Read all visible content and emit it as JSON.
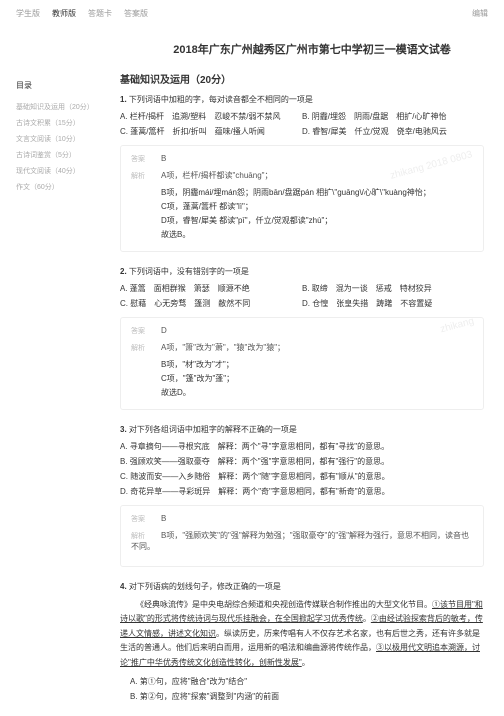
{
  "topbar": {
    "tabs": [
      "学生版",
      "教师版",
      "答题卡",
      "答案版"
    ],
    "active_index": 1,
    "edit": "编辑"
  },
  "title": "2018年广东广州越秀区广州市第七中学初三一模语文试卷",
  "sidebar": {
    "title": "目录",
    "items": [
      "基础知识及运用（20分）",
      "古诗文积累（15分）",
      "文言文阅读（10分）",
      "古诗词鉴赏（5分）",
      "现代文阅读（40分）",
      "作文（60分）"
    ]
  },
  "section1": {
    "title": "基础知识及运用（20分）"
  },
  "q1": {
    "num": "1.",
    "stem": "下列词语中加粗的字，每对读音都全不相同的一项是",
    "opts": {
      "A": "A. 栏杆/揭杆　追溯/塑料　忍峻不禁/弱不禁风",
      "B": "B. 阴霾/埋怨　阴雨/盘踞　相扩/心旷神怡",
      "C": "C. 蓬蒿/篙杆　折扣/折叫　蕴味/搔人听闻",
      "D": "D. 睿智/犀美　仟立/觉观　侥幸/电驰风云"
    },
    "answer": "B",
    "explain": [
      "A项，栏杆/揭杆都读\"chuāng\"；",
      "B项，阴霾mái/埋mán怨；阴雨bān/盘踞pán 相扩\\\"guāng\\/心旷\\\"kuàng神怡；",
      "C项，蓬蒿/篙杆 都读\"lì\"；",
      "D项，睿智/犀美 都读\"pī\"，仟立/觉观都读\"zhù\"；",
      "故选B。"
    ]
  },
  "q2": {
    "num": "2.",
    "stem": "下列词语中，没有错别字的一项是",
    "opts": {
      "A": "A. 蓬篙　面相群猴　箫瑟　顺源不绝",
      "B": "B. 取缔　混为一谈　惩戒　特材狡异",
      "C": "C. 慰藉　心无旁骛　篷测　敝然不同",
      "D": "D. 仓惶　张皇失措　踌躇　不容置疑"
    },
    "answer": "D",
    "explain": [
      "A项，\"箫\"改为\"萧\"，\"猿\"改为\"猿\"；",
      "B项，\"材\"改为\"才\"；",
      "C项，\"篷\"改为\"蓬\"；",
      "故选D。"
    ]
  },
  "q3": {
    "num": "3.",
    "stem": "对下列各组词语中加粗字的解释不正确的一项是",
    "opts": [
      "A. 寻章摘句——寻根究底　解释：两个\"寻\"字意思相同，都有\"寻找\"的意思。",
      "B. 强顾欢笑——强取豪夺　解释：两个\"强\"字意思相同，都有\"强行\"的意思。",
      "C. 随波而安——入乡随俗　解释：两个\"随\"字意思相同，都有\"顺从\"的意思。",
      "D. 奇花异草——寻彩斑异　解释：两个\"奇\"字意思相同，都有\"新奇\"的意思。"
    ],
    "answer": "B",
    "explain": [
      "B项，\"强顾欢笑\"的\"强\"解释为勉强；\"强取豪夺\"的\"强\"解释为强行，意思不相同，读音也不同。"
    ]
  },
  "q4": {
    "num": "4.",
    "stem": "对下列语病的划线句子，修改正确的一项是",
    "paragraph_parts": [
      {
        "text": "《经典咏流传》是中央电胡综合频道和央视创造传媒联合制作推出的大型文化节目。",
        "u": false
      },
      {
        "text": "①该节目用\"和诗以歌\"的形式将传统诗词与现代乐挂融会，在全国掀起学习优秀传统",
        "u": true
      },
      {
        "text": "。",
        "u": false
      },
      {
        "text": "②由经试验探索背后的敏考，传递人文情感，讲述文化知识",
        "u": true
      },
      {
        "text": "。纵读历史，历来传唱有人不仅存艺术名家，也有后世之秀，还有许多就是生活的普通人。他们后来明白而用，运用新的唱法和编曲源将传统作品，",
        "u": false
      },
      {
        "text": "③以极用代文明追本溯源，讨论\"推广中华优秀传统文化创造性转化，创新性发展\"",
        "u": true
      },
      {
        "text": "。",
        "u": false
      }
    ],
    "subitems": [
      "A. 第①句，应将\"融合\"改为\"结合\"",
      "B. 第②句，应将\"探索\"调整到\"内涵\"的前面"
    ]
  }
}
